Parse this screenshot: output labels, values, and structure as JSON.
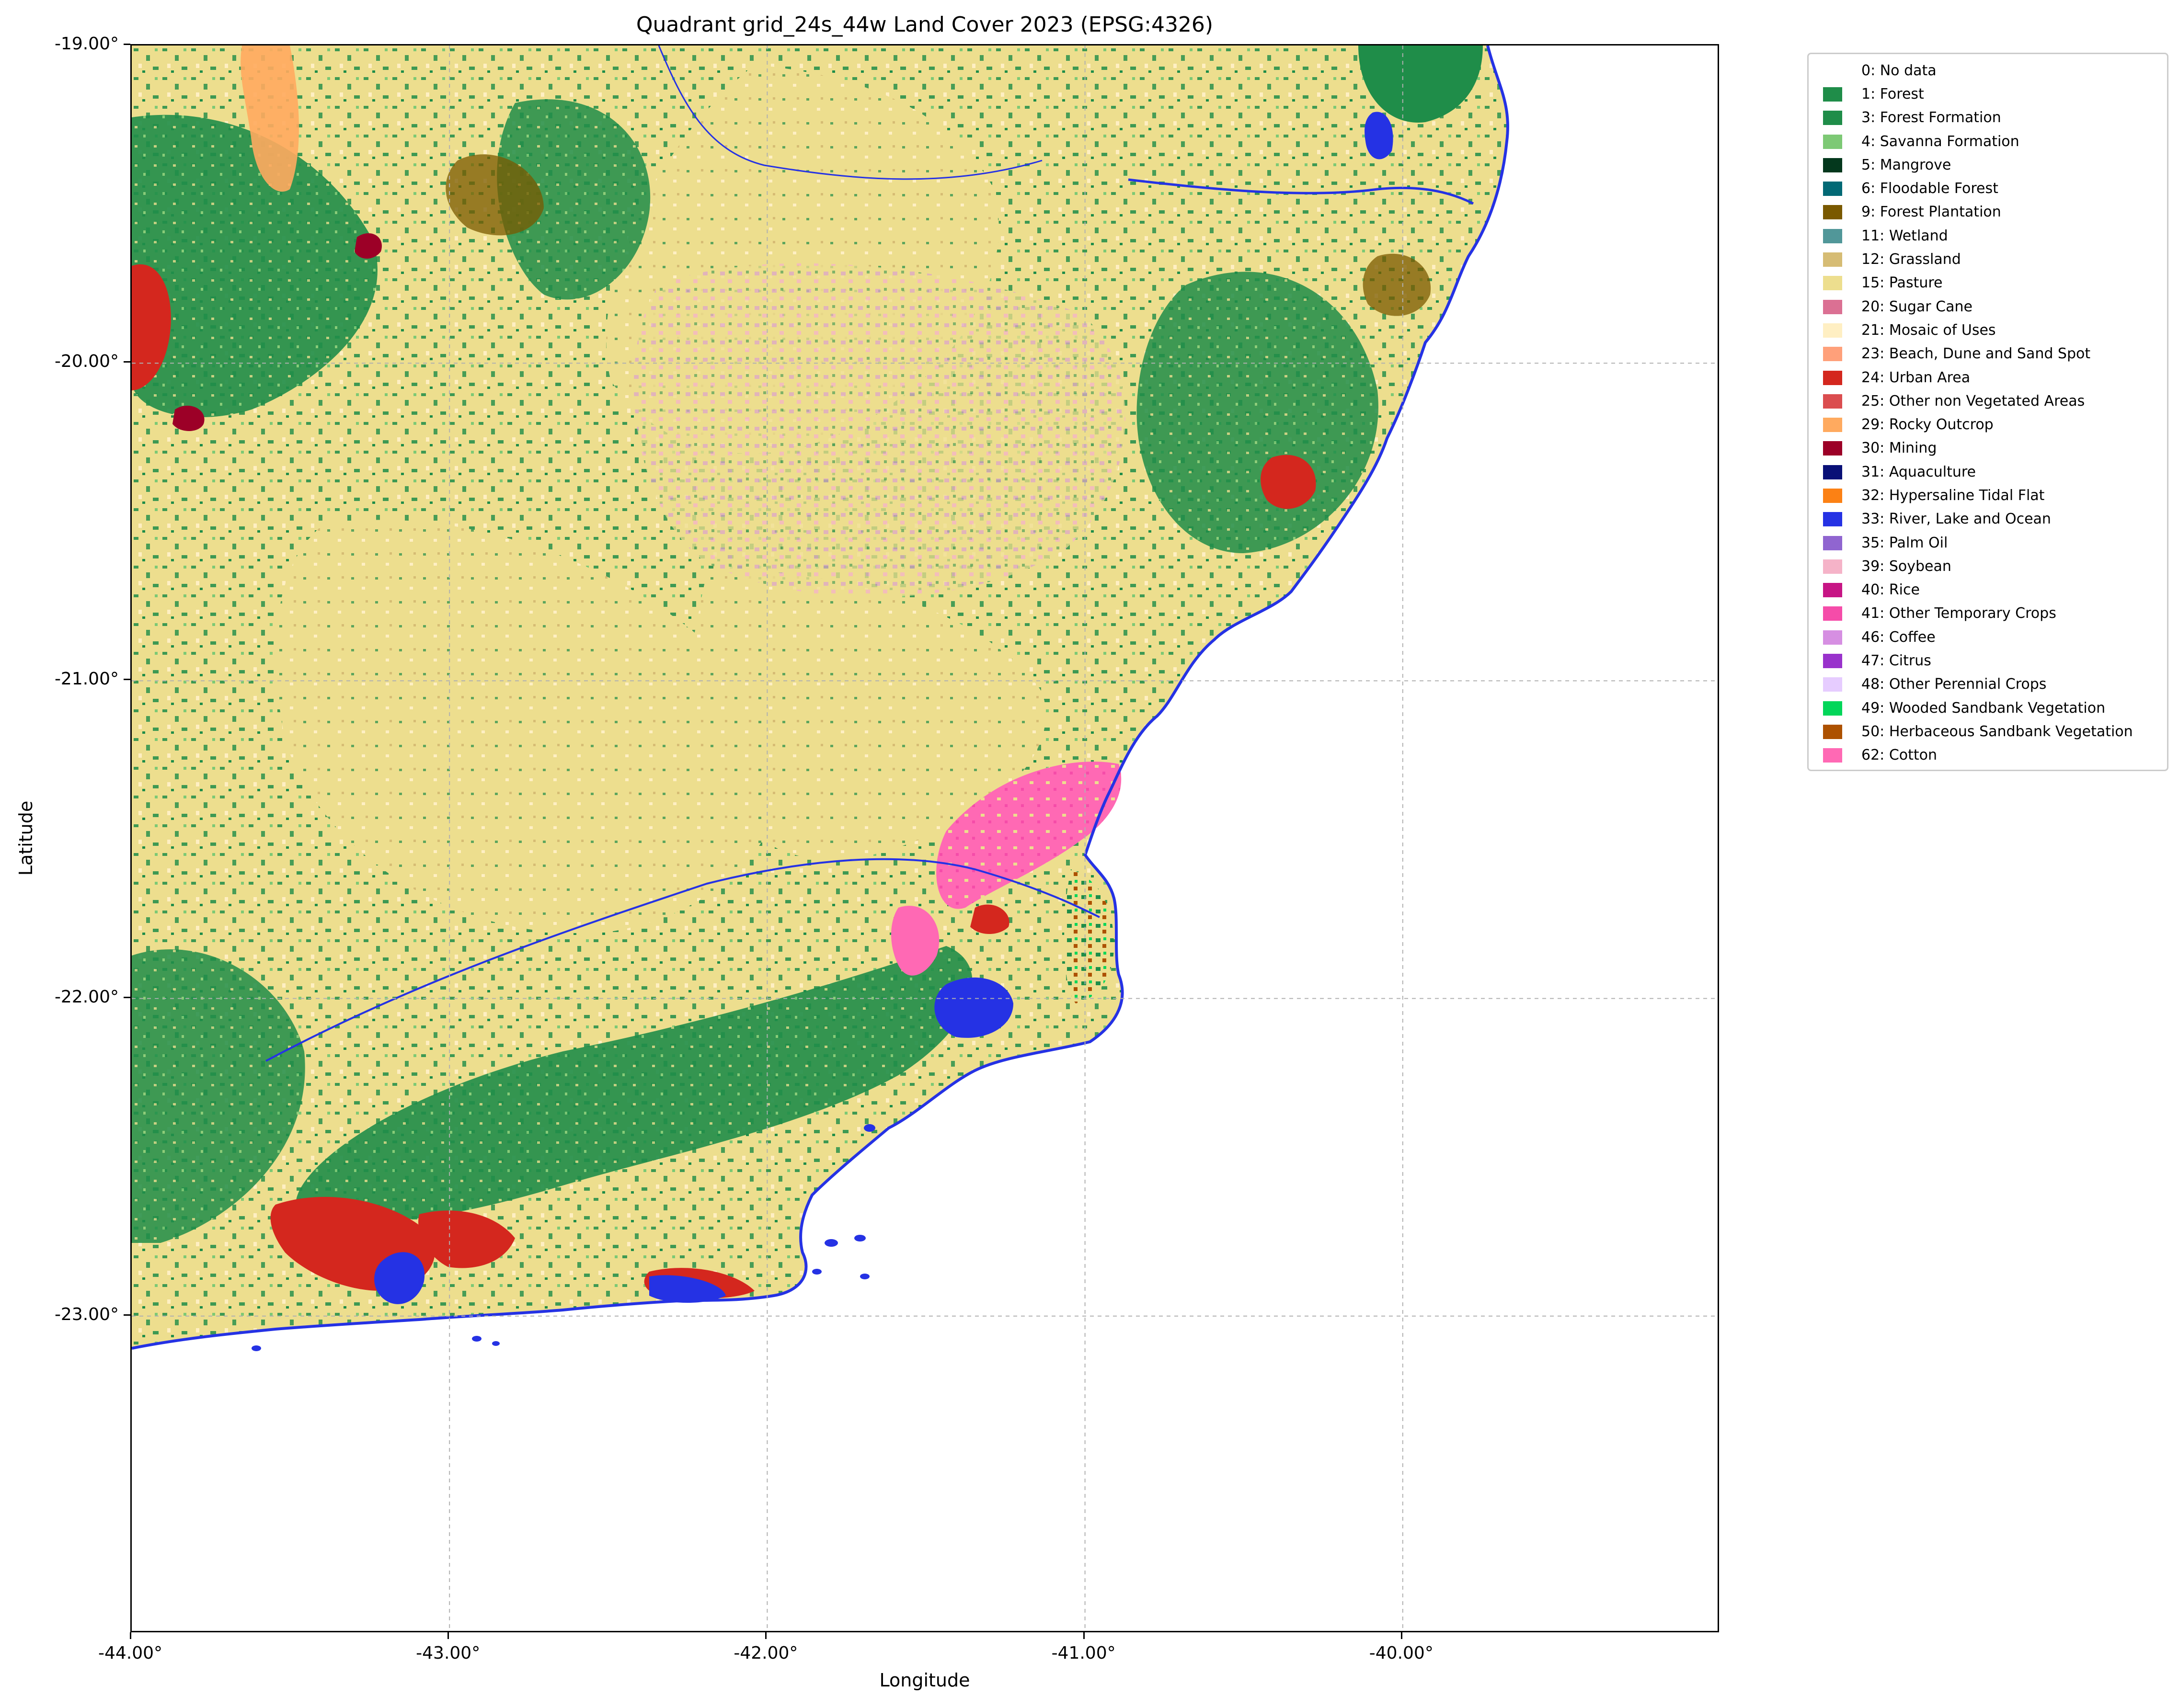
{
  "title": "Quadrant grid_24s_44w Land Cover 2023 (EPSG:4326)",
  "xlabel": "Longitude",
  "ylabel": "Latitude",
  "x_ticks": [
    "-44.00°",
    "-43.00°",
    "-42.00°",
    "-41.00°",
    "-40.00°"
  ],
  "y_ticks": [
    "-19.00°",
    "-20.00°",
    "-21.00°",
    "-22.00°",
    "-23.00°"
  ],
  "extent": {
    "lon": [
      -44.0,
      -39.0
    ],
    "lat": [
      -24.0,
      -19.0
    ]
  },
  "grid": true,
  "legend": {
    "placement": "outside-right",
    "items": [
      {
        "label": "0: No data",
        "color": "#ffffff"
      },
      {
        "label": "1: Forest",
        "color": "#1f8d49"
      },
      {
        "label": "3: Forest Formation",
        "color": "#1f8d49"
      },
      {
        "label": "4: Savanna Formation",
        "color": "#7dc975"
      },
      {
        "label": "5: Mangrove",
        "color": "#04381d"
      },
      {
        "label": "6: Floodable Forest",
        "color": "#026975"
      },
      {
        "label": "9: Forest Plantation",
        "color": "#7a5900"
      },
      {
        "label": "11: Wetland",
        "color": "#519799"
      },
      {
        "label": "12: Grassland",
        "color": "#d6bc74"
      },
      {
        "label": "15: Pasture",
        "color": "#edde8e"
      },
      {
        "label": "20: Sugar Cane",
        "color": "#db7093"
      },
      {
        "label": "21: Mosaic of Uses",
        "color": "#ffefc3"
      },
      {
        "label": "23: Beach, Dune and Sand Spot",
        "color": "#ffa07a"
      },
      {
        "label": "24: Urban Area",
        "color": "#d4271e"
      },
      {
        "label": "25: Other non Vegetated Areas",
        "color": "#db4d4f"
      },
      {
        "label": "29: Rocky Outcrop",
        "color": "#ffaa5f"
      },
      {
        "label": "30: Mining",
        "color": "#9c0027"
      },
      {
        "label": "31: Aquaculture",
        "color": "#091077"
      },
      {
        "label": "32: Hypersaline Tidal Flat",
        "color": "#fc8114"
      },
      {
        "label": "33: River, Lake and Ocean",
        "color": "#2532e4"
      },
      {
        "label": "35: Palm Oil",
        "color": "#9065d0"
      },
      {
        "label": "39: Soybean",
        "color": "#f5b3c8"
      },
      {
        "label": "40: Rice",
        "color": "#c71585"
      },
      {
        "label": "41: Other Temporary Crops",
        "color": "#f54ca9"
      },
      {
        "label": "46: Coffee",
        "color": "#d68fe2"
      },
      {
        "label": "47: Citrus",
        "color": "#9932cc"
      },
      {
        "label": "48: Other Perennial Crops",
        "color": "#e6ccff"
      },
      {
        "label": "49: Wooded Sandbank Vegetation",
        "color": "#02d659"
      },
      {
        "label": "50: Herbaceous Sandbank Vegetation",
        "color": "#ad5100"
      },
      {
        "label": "62: Cotton",
        "color": "#ff69b4"
      }
    ]
  }
}
